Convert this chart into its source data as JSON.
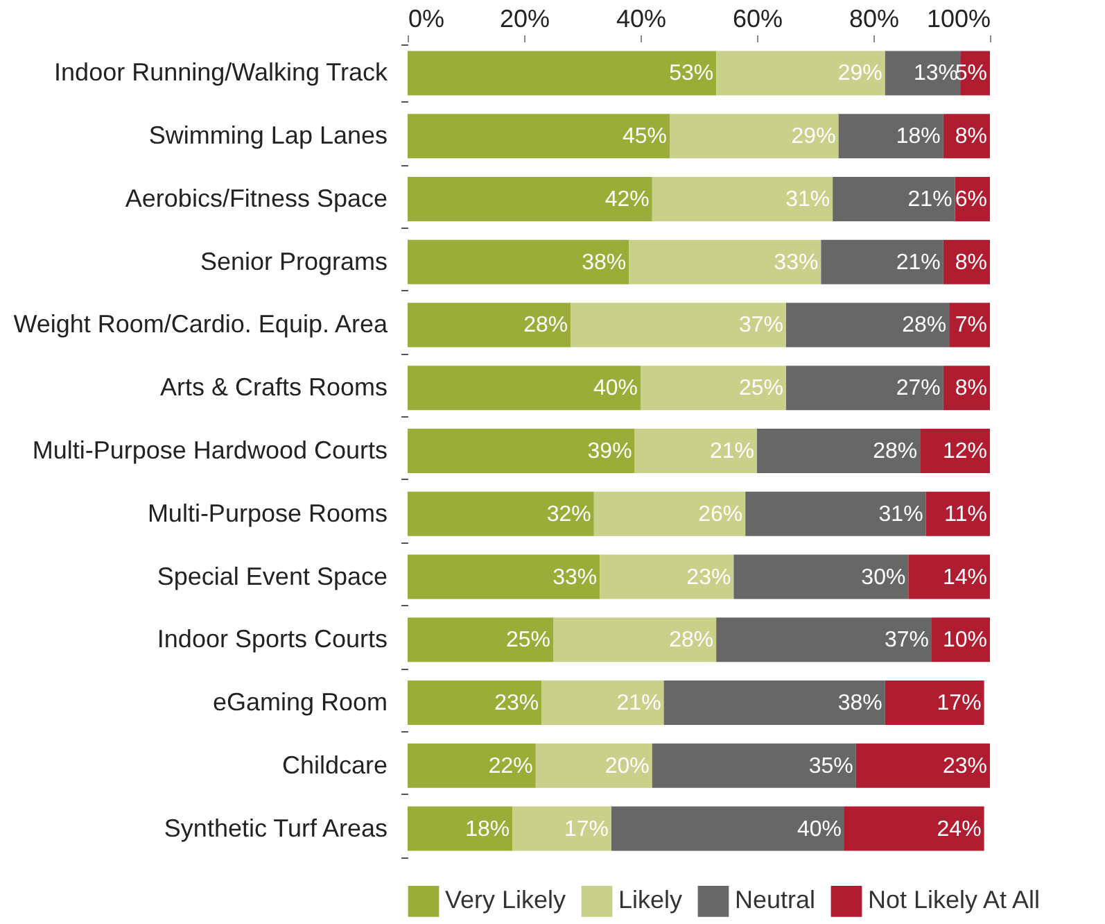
{
  "chart_data": {
    "type": "bar",
    "orientation": "horizontal",
    "stacked": true,
    "legend": "bottom",
    "grid": false,
    "categories": [
      "Indoor Running/Walking Track",
      "Swimming Lap Lanes",
      "Aerobics/Fitness Space",
      "Senior Programs",
      "Weight Room/Cardio. Equip. Area",
      "Arts & Crafts Rooms",
      "Multi-Purpose Hardwood Courts",
      "Multi-Purpose Rooms",
      "Special Event Space",
      "Indoor Sports Courts",
      "eGaming Room",
      "Childcare",
      "Synthetic Turf Areas"
    ],
    "xlim": [
      0,
      100
    ],
    "xticks": [
      {
        "value": 0,
        "label": "0%"
      },
      {
        "value": 20,
        "label": "20%"
      },
      {
        "value": 40,
        "label": "40%"
      },
      {
        "value": 60,
        "label": "60%"
      },
      {
        "value": 80,
        "label": "80%"
      },
      {
        "value": 100,
        "label": "100%"
      }
    ],
    "series": [
      {
        "name": "Very Likely",
        "color": "#9aad38",
        "values": [
          53,
          45,
          42,
          38,
          28,
          40,
          39,
          32,
          33,
          25,
          23,
          22,
          18
        ],
        "value_labels": [
          "53%",
          "45%",
          "42%",
          "38%",
          "28%",
          "40%",
          "39%",
          "32%",
          "33%",
          "25%",
          "23%",
          "22%",
          "18%"
        ]
      },
      {
        "name": "Likely",
        "color": "#c8d08a",
        "values": [
          29,
          29,
          31,
          33,
          37,
          25,
          21,
          26,
          23,
          28,
          21,
          20,
          17
        ],
        "value_labels": [
          "29%",
          "29%",
          "31%",
          "33%",
          "37%",
          "25%",
          "21%",
          "26%",
          "23%",
          "28%",
          "21%",
          "20%",
          "17%"
        ]
      },
      {
        "name": "Neutral",
        "color": "#676767",
        "values": [
          13,
          18,
          21,
          21,
          28,
          27,
          28,
          31,
          30,
          37,
          38,
          35,
          40
        ],
        "value_labels": [
          "13%",
          "18%",
          "21%",
          "21%",
          "28%",
          "27%",
          "28%",
          "31%",
          "30%",
          "37%",
          "38%",
          "35%",
          "40%"
        ]
      },
      {
        "name": "Not Likely At All",
        "color": "#b01c30",
        "values": [
          5,
          8,
          6,
          8,
          7,
          8,
          12,
          11,
          14,
          10,
          17,
          23,
          24
        ],
        "value_labels": [
          "5%",
          "8%",
          "6%",
          "8%",
          "7%",
          "8%",
          "12%",
          "11%",
          "14%",
          "10%",
          "17%",
          "23%",
          "24%"
        ]
      }
    ]
  }
}
